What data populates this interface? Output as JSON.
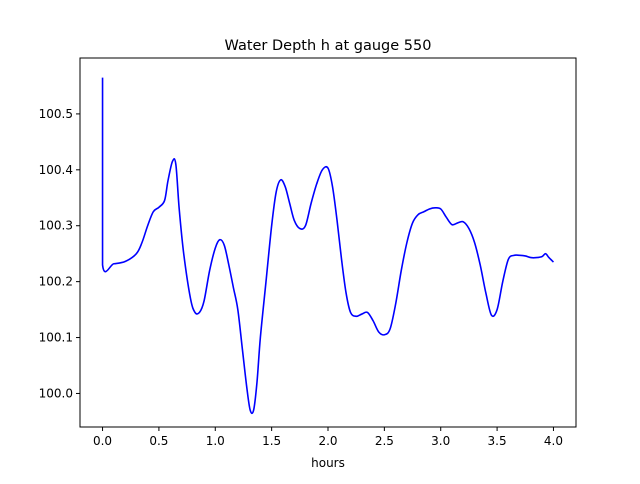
{
  "chart_data": {
    "type": "line",
    "title": "Water Depth h at gauge 550",
    "xlabel": "hours",
    "ylabel": "",
    "xlim": [
      -0.2,
      4.2
    ],
    "ylim": [
      99.94,
      100.6
    ],
    "grid": false,
    "xticks": [
      0.0,
      0.5,
      1.0,
      1.5,
      2.0,
      2.5,
      3.0,
      3.5,
      4.0
    ],
    "xtick_labels": [
      "0.0",
      "0.5",
      "1.0",
      "1.5",
      "2.0",
      "2.5",
      "3.0",
      "3.5",
      "4.0"
    ],
    "yticks": [
      100.0,
      100.1,
      100.2,
      100.3,
      100.4,
      100.5
    ],
    "ytick_labels": [
      "100.0",
      "100.1",
      "100.2",
      "100.3",
      "100.4",
      "100.5"
    ],
    "series": [
      {
        "color": "#0000ff",
        "x": [
          0.0,
          0.0,
          0.0,
          0.1,
          0.2,
          0.3,
          0.35,
          0.4,
          0.45,
          0.5,
          0.55,
          0.58,
          0.62,
          0.65,
          0.68,
          0.72,
          0.78,
          0.82,
          0.86,
          0.9,
          0.95,
          1.0,
          1.04,
          1.08,
          1.12,
          1.16,
          1.2,
          1.24,
          1.28,
          1.31,
          1.34,
          1.37,
          1.4,
          1.45,
          1.5,
          1.54,
          1.58,
          1.62,
          1.66,
          1.7,
          1.75,
          1.8,
          1.85,
          1.9,
          1.95,
          2.0,
          2.04,
          2.08,
          2.12,
          2.16,
          2.2,
          2.25,
          2.3,
          2.35,
          2.4,
          2.45,
          2.5,
          2.55,
          2.6,
          2.65,
          2.7,
          2.75,
          2.8,
          2.85,
          2.9,
          2.95,
          3.0,
          3.05,
          3.1,
          3.15,
          3.2,
          3.25,
          3.3,
          3.35,
          3.4,
          3.45,
          3.5,
          3.55,
          3.6,
          3.65,
          3.7,
          3.75,
          3.8,
          3.85,
          3.9,
          3.93,
          3.96,
          4.0
        ],
        "y": [
          100.565,
          100.4,
          100.23,
          100.232,
          100.236,
          100.25,
          100.27,
          100.3,
          100.325,
          100.333,
          100.345,
          100.38,
          100.415,
          100.41,
          100.33,
          100.25,
          100.17,
          100.145,
          100.145,
          100.165,
          100.22,
          100.26,
          100.275,
          100.265,
          100.23,
          100.19,
          100.15,
          100.08,
          100.01,
          99.97,
          99.97,
          100.02,
          100.1,
          100.2,
          100.3,
          100.36,
          100.382,
          100.37,
          100.34,
          100.31,
          100.295,
          100.3,
          100.34,
          100.375,
          100.4,
          100.403,
          100.37,
          100.31,
          100.24,
          100.18,
          100.145,
          100.138,
          100.142,
          100.145,
          100.13,
          100.11,
          100.105,
          100.115,
          100.16,
          100.22,
          100.27,
          100.305,
          100.32,
          100.325,
          100.33,
          100.332,
          100.33,
          100.315,
          100.302,
          100.305,
          100.307,
          100.295,
          100.27,
          100.23,
          100.18,
          100.14,
          100.15,
          100.2,
          100.24,
          100.247,
          100.247,
          100.246,
          100.243,
          100.243,
          100.245,
          100.25,
          100.243,
          100.235
        ]
      }
    ]
  }
}
